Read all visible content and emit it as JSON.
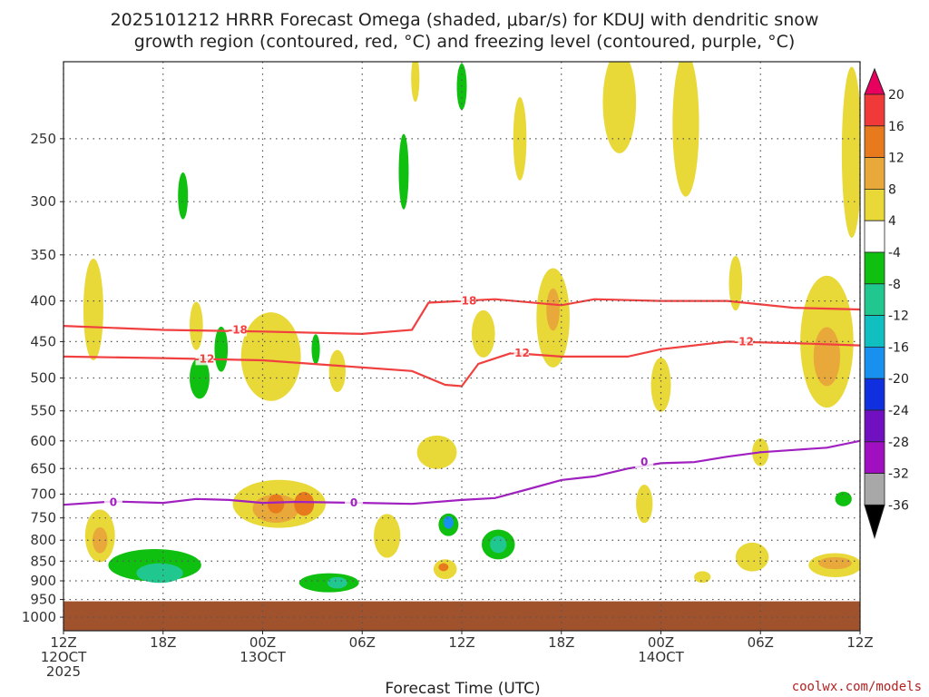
{
  "title": {
    "line1": "2025101212 HRRR Forecast Omega (shaded, μbar/s) for KDUJ with dendritic snow",
    "line2": "growth region (contoured, red, °C) and freezing level (contoured, purple, °C)"
  },
  "credit": "coolwx.com/models",
  "chart_data": {
    "type": "heatmap",
    "xlabel": "Forecast Time (UTC)",
    "x_ticks": [
      {
        "hour": 0,
        "lines": [
          "12Z",
          "12OCT",
          "2025"
        ]
      },
      {
        "hour": 6,
        "lines": [
          "18Z"
        ]
      },
      {
        "hour": 12,
        "lines": [
          "00Z",
          "13OCT"
        ]
      },
      {
        "hour": 18,
        "lines": [
          "06Z"
        ]
      },
      {
        "hour": 24,
        "lines": [
          "12Z"
        ]
      },
      {
        "hour": 30,
        "lines": [
          "18Z"
        ]
      },
      {
        "hour": 36,
        "lines": [
          "00Z",
          "14OCT"
        ]
      },
      {
        "hour": 42,
        "lines": [
          "06Z"
        ]
      },
      {
        "hour": 48,
        "lines": [
          "12Z"
        ]
      }
    ],
    "xlim": [
      0,
      48
    ],
    "y_ticks": [
      250,
      300,
      350,
      400,
      450,
      500,
      550,
      600,
      650,
      700,
      750,
      800,
      850,
      900,
      950,
      1000
    ],
    "ylim_hpa": [
      200,
      1040
    ],
    "ground_level_hpa": 955,
    "colorbar": {
      "units": "μbar/s",
      "labels": [
        20,
        16,
        12,
        8,
        4,
        -4,
        -8,
        -12,
        -16,
        -20,
        -24,
        -28,
        -32,
        -36
      ],
      "colors": [
        "#e8005e",
        "#f03a3a",
        "#e87a1e",
        "#e8a83a",
        "#e8d838",
        "#ffffff",
        "#10c010",
        "#20c890",
        "#10c0c0",
        "#1890f0",
        "#1030e0",
        "#7010c0",
        "#a010c0",
        "#a8a8a8",
        "#000000"
      ]
    },
    "dgz_contours": [
      {
        "label": "-18",
        "color": "#f04040",
        "points": [
          [
            0,
            430
          ],
          [
            6,
            435
          ],
          [
            12,
            437
          ],
          [
            18,
            440
          ],
          [
            21,
            435
          ],
          [
            22,
            402
          ],
          [
            24,
            400
          ],
          [
            26,
            398
          ],
          [
            30,
            405
          ],
          [
            32,
            398
          ],
          [
            36,
            400
          ],
          [
            40,
            400
          ],
          [
            44,
            408
          ],
          [
            48,
            410
          ]
        ]
      },
      {
        "label": "-12",
        "color": "#f04040",
        "points": [
          [
            0,
            470
          ],
          [
            6,
            472
          ],
          [
            12,
            475
          ],
          [
            18,
            485
          ],
          [
            21,
            490
          ],
          [
            23,
            510
          ],
          [
            24,
            512
          ],
          [
            25,
            480
          ],
          [
            27,
            465
          ],
          [
            30,
            470
          ],
          [
            34,
            470
          ],
          [
            36,
            460
          ],
          [
            40,
            450
          ],
          [
            44,
            452
          ],
          [
            48,
            455
          ]
        ]
      }
    ],
    "freezing_contour": {
      "label": "0",
      "color": "#a020c0",
      "points": [
        [
          0,
          722
        ],
        [
          3,
          715
        ],
        [
          6,
          718
        ],
        [
          8,
          710
        ],
        [
          10,
          712
        ],
        [
          12,
          718
        ],
        [
          14,
          716
        ],
        [
          18,
          718
        ],
        [
          21,
          720
        ],
        [
          24,
          712
        ],
        [
          26,
          708
        ],
        [
          28,
          690
        ],
        [
          30,
          672
        ],
        [
          32,
          665
        ],
        [
          34,
          650
        ],
        [
          36,
          640
        ],
        [
          38,
          638
        ],
        [
          40,
          628
        ],
        [
          42,
          620
        ],
        [
          44,
          616
        ],
        [
          46,
          612
        ],
        [
          48,
          600
        ]
      ]
    },
    "contour_label_positions": [
      {
        "label": "-18",
        "hour": 10.5,
        "hpa": 435
      },
      {
        "label": "-18",
        "hour": 24.3,
        "hpa": 400
      },
      {
        "label": "-12",
        "hour": 8.5,
        "hpa": 473
      },
      {
        "label": "-12",
        "hour": 27.5,
        "hpa": 465
      },
      {
        "label": "-12",
        "hour": 41.0,
        "hpa": 450
      },
      {
        "label": "0",
        "hour": 3.0,
        "hpa": 717
      },
      {
        "label": "0",
        "hour": 17.5,
        "hpa": 718
      },
      {
        "label": "0",
        "hour": 35.0,
        "hpa": 638
      }
    ],
    "omega_blobs": [
      {
        "hour": 1.8,
        "hpa": 410,
        "rh": 0.6,
        "rv": 120,
        "value": 4
      },
      {
        "hour": 2.2,
        "hpa": 790,
        "rh": 0.9,
        "rv": 120,
        "value": 4
      },
      {
        "hour": 2.2,
        "hpa": 800,
        "rh": 0.45,
        "rv": 60,
        "value": 10
      },
      {
        "hour": 7.2,
        "hpa": 295,
        "rh": 0.3,
        "rv": 40,
        "value": -6
      },
      {
        "hour": 8.0,
        "hpa": 430,
        "rh": 0.4,
        "rv": 60,
        "value": 4
      },
      {
        "hour": 8.2,
        "hpa": 500,
        "rh": 0.6,
        "rv": 60,
        "value": -6
      },
      {
        "hour": 9.5,
        "hpa": 460,
        "rh": 0.4,
        "rv": 60,
        "value": -6
      },
      {
        "hour": 5.5,
        "hpa": 860,
        "rh": 2.8,
        "rv": 80,
        "value": -6
      },
      {
        "hour": 5.8,
        "hpa": 880,
        "rh": 1.4,
        "rv": 50,
        "value": -10
      },
      {
        "hour": 12.5,
        "hpa": 470,
        "rh": 1.8,
        "rv": 120,
        "value": 4
      },
      {
        "hour": 13.0,
        "hpa": 720,
        "rh": 2.8,
        "rv": 100,
        "value": 4
      },
      {
        "hour": 12.8,
        "hpa": 730,
        "rh": 1.4,
        "rv": 60,
        "value": 8
      },
      {
        "hour": 12.8,
        "hpa": 720,
        "rh": 0.5,
        "rv": 40,
        "value": 12
      },
      {
        "hour": 14.5,
        "hpa": 720,
        "rh": 0.6,
        "rv": 50,
        "value": 12
      },
      {
        "hour": 15.2,
        "hpa": 460,
        "rh": 0.25,
        "rv": 40,
        "value": -6
      },
      {
        "hour": 16.5,
        "hpa": 490,
        "rh": 0.5,
        "rv": 60,
        "value": 4
      },
      {
        "hour": 16.0,
        "hpa": 905,
        "rh": 1.8,
        "rv": 50,
        "value": -6
      },
      {
        "hour": 16.5,
        "hpa": 905,
        "rh": 0.6,
        "rv": 30,
        "value": -10
      },
      {
        "hour": 19.5,
        "hpa": 790,
        "rh": 0.8,
        "rv": 100,
        "value": 4
      },
      {
        "hour": 20.5,
        "hpa": 275,
        "rh": 0.3,
        "rv": 60,
        "value": -6
      },
      {
        "hour": 21.2,
        "hpa": 210,
        "rh": 0.25,
        "rv": 40,
        "value": 4
      },
      {
        "hour": 24.0,
        "hpa": 215,
        "rh": 0.3,
        "rv": 30,
        "value": -6
      },
      {
        "hour": 22.5,
        "hpa": 620,
        "rh": 1.2,
        "rv": 60,
        "value": 4
      },
      {
        "hour": 23.2,
        "hpa": 765,
        "rh": 0.6,
        "rv": 50,
        "value": -8
      },
      {
        "hour": 23.2,
        "hpa": 760,
        "rh": 0.3,
        "rv": 28,
        "value": -18
      },
      {
        "hour": 23.0,
        "hpa": 870,
        "rh": 0.7,
        "rv": 50,
        "value": 4
      },
      {
        "hour": 22.9,
        "hpa": 865,
        "rh": 0.3,
        "rv": 20,
        "value": 12
      },
      {
        "hour": 25.3,
        "hpa": 440,
        "rh": 0.7,
        "rv": 60,
        "value": 4
      },
      {
        "hour": 26.2,
        "hpa": 810,
        "rh": 1.0,
        "rv": 70,
        "value": -6
      },
      {
        "hour": 26.2,
        "hpa": 810,
        "rh": 0.5,
        "rv": 40,
        "value": -10
      },
      {
        "hour": 27.5,
        "hpa": 250,
        "rh": 0.4,
        "rv": 60,
        "value": 4
      },
      {
        "hour": 29.5,
        "hpa": 420,
        "rh": 1.0,
        "rv": 120,
        "value": 4
      },
      {
        "hour": 29.5,
        "hpa": 410,
        "rh": 0.4,
        "rv": 50,
        "value": 8
      },
      {
        "hour": 33.5,
        "hpa": 225,
        "rh": 1.0,
        "rv": 90,
        "value": 4
      },
      {
        "hour": 35.0,
        "hpa": 720,
        "rh": 0.5,
        "rv": 80,
        "value": 4
      },
      {
        "hour": 36.0,
        "hpa": 510,
        "rh": 0.6,
        "rv": 80,
        "value": 4
      },
      {
        "hour": 37.5,
        "hpa": 240,
        "rh": 0.8,
        "rv": 130,
        "value": 4
      },
      {
        "hour": 38.5,
        "hpa": 890,
        "rh": 0.5,
        "rv": 30,
        "value": 4
      },
      {
        "hour": 40.5,
        "hpa": 380,
        "rh": 0.4,
        "rv": 60,
        "value": 4
      },
      {
        "hour": 42.0,
        "hpa": 620,
        "rh": 0.5,
        "rv": 50,
        "value": 4
      },
      {
        "hour": 41.5,
        "hpa": 840,
        "rh": 1.0,
        "rv": 70,
        "value": 4
      },
      {
        "hour": 46.0,
        "hpa": 450,
        "rh": 1.6,
        "rv": 170,
        "value": 4
      },
      {
        "hour": 46.0,
        "hpa": 470,
        "rh": 0.8,
        "rv": 80,
        "value": 8
      },
      {
        "hour": 47.5,
        "hpa": 260,
        "rh": 0.6,
        "rv": 140,
        "value": 4
      },
      {
        "hour": 46.5,
        "hpa": 860,
        "rh": 1.6,
        "rv": 60,
        "value": 4
      },
      {
        "hour": 46.5,
        "hpa": 855,
        "rh": 1.0,
        "rv": 30,
        "value": 8
      },
      {
        "hour": 47.0,
        "hpa": 710,
        "rh": 0.5,
        "rv": 30,
        "value": -6
      }
    ]
  }
}
